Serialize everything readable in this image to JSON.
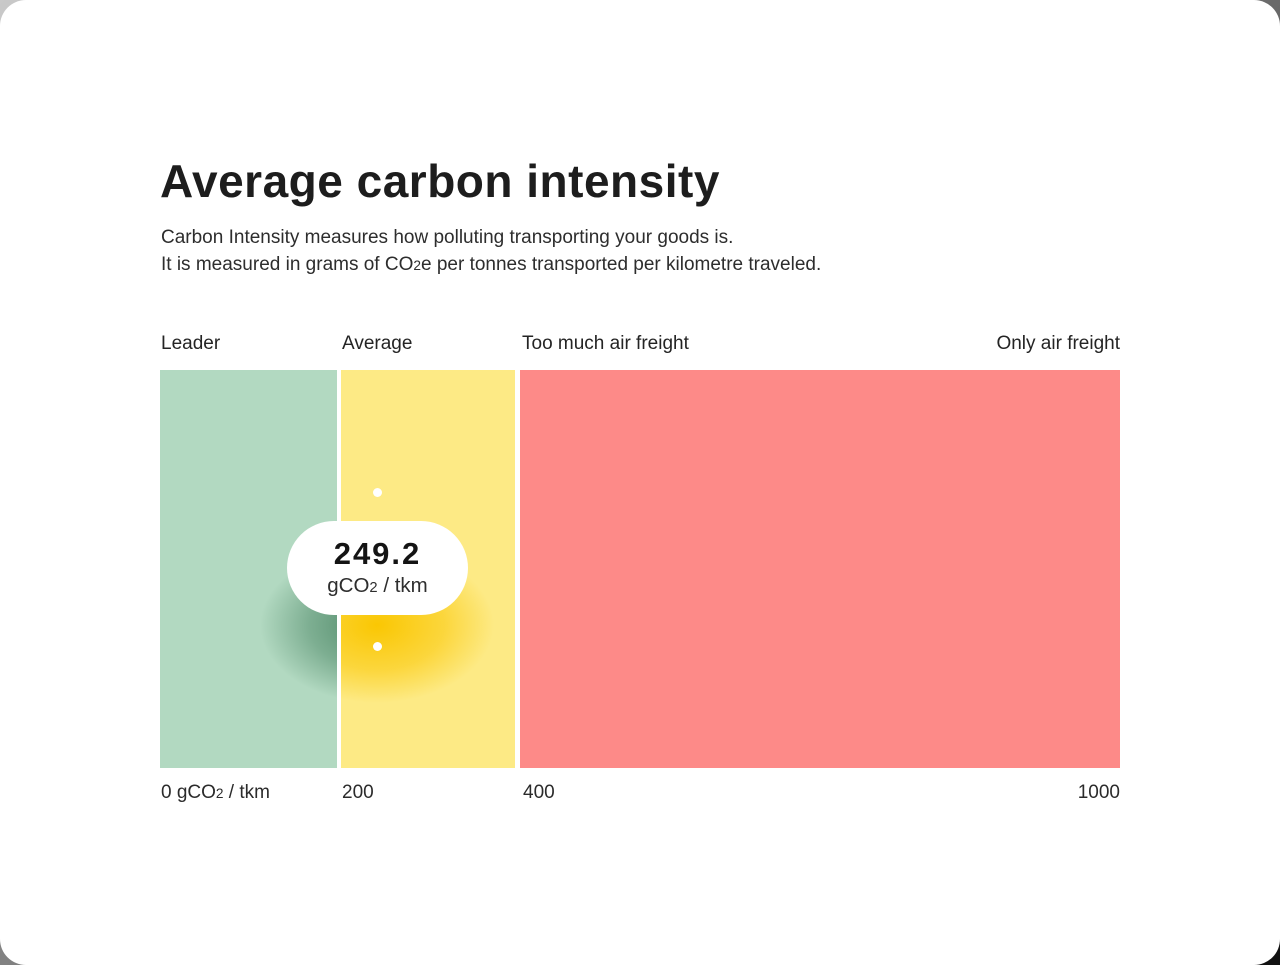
{
  "page": {
    "title": "Average carbon intensity",
    "subtitle": {
      "line1": "Carbon Intensity measures how polluting transporting your goods is.",
      "line2_prefix": "It is measured in grams of CO",
      "line2_sub": "2",
      "line2_suffix": "e per tonnes transported per kilometre traveled."
    }
  },
  "chart_data": {
    "type": "bar",
    "subtype": "horizontal-banded-scale",
    "title": "Average carbon intensity",
    "value": 249.2,
    "value_label": "249.2",
    "unit": {
      "prefix": "gCO",
      "sub": "2",
      "suffix": " / tkm"
    },
    "xlim": [
      0,
      1000
    ],
    "grid": false,
    "legend_position": "none",
    "zones": [
      {
        "label": "Leader",
        "start": 0,
        "end": 200,
        "color": "#b2d9c1"
      },
      {
        "label": "Average",
        "start": 200,
        "end": 400,
        "color": "#fdea85"
      },
      {
        "label": "Too much air freight",
        "label_right": "Only air freight",
        "start": 400,
        "end": 1000,
        "color": "#fd8a88"
      }
    ],
    "axis_ticks": [
      {
        "value": 0,
        "prefix": "0 gCO",
        "sub": "2",
        "suffix": " / tkm"
      },
      {
        "value": 200,
        "text": "200"
      },
      {
        "value": 400,
        "text": "400"
      },
      {
        "value": 1000,
        "text": "1000"
      }
    ],
    "marker": {
      "value": 249.2,
      "dot_color": "#ffffff",
      "badge_bg": "#ffffff"
    }
  },
  "colors": {
    "card_bg": "#ffffff",
    "zone_green": "#b2d9c1",
    "zone_yellow": "#fdea85",
    "zone_red": "#fd8a88",
    "glow_gold": "#fac600",
    "glow_green": "#175c36",
    "text_dark": "#1d1d1d",
    "text_body": "#2d2d2d"
  }
}
